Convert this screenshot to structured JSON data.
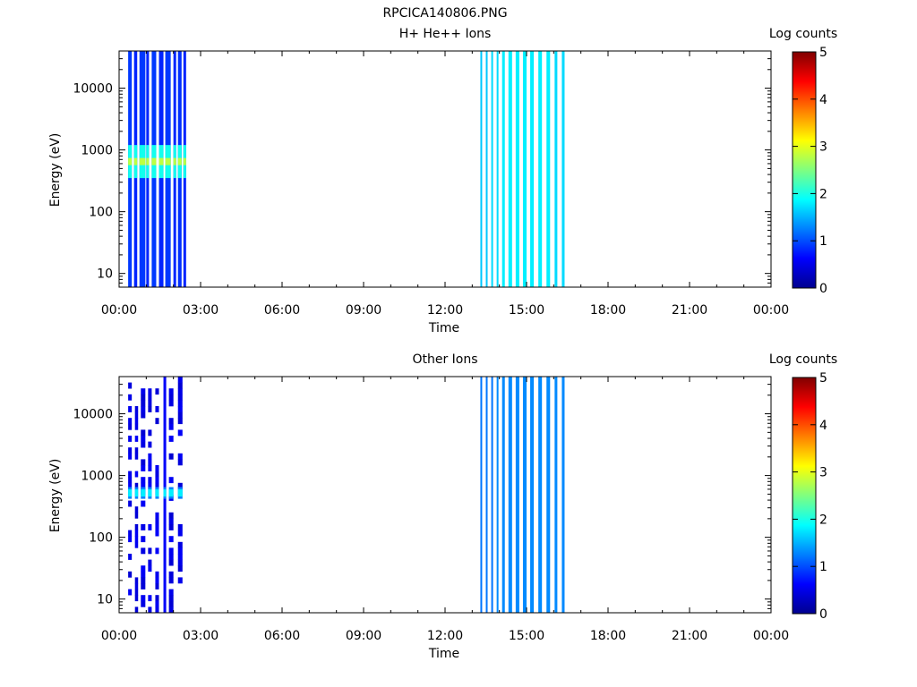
{
  "figure": {
    "title": "RPCICA140806.PNG"
  },
  "chart_data": [
    {
      "type": "heatmap",
      "title": "H+ He++ Ions",
      "xlabel": "Time",
      "ylabel": "Energy (eV)",
      "xlim": [
        "00:00",
        "24:00"
      ],
      "ylim": [
        6,
        40000
      ],
      "yscale": "log",
      "x_ticks": [
        "00:00",
        "03:00",
        "06:00",
        "09:00",
        "12:00",
        "15:00",
        "18:00",
        "21:00",
        "00:00"
      ],
      "y_ticks": [
        "10",
        "100",
        "1000",
        "10000"
      ],
      "colorbar": {
        "label": "Log counts",
        "ticks": [
          "0",
          "1",
          "2",
          "3",
          "4",
          "5"
        ],
        "range": [
          0,
          5
        ],
        "colormap": "jet"
      },
      "strips": [
        {
          "start": "00:20",
          "end": "00:28",
          "level": 0.9
        },
        {
          "start": "00:33",
          "end": "00:40",
          "level": 0.8
        },
        {
          "start": "00:45",
          "end": "00:58",
          "level": 0.9
        },
        {
          "start": "01:00",
          "end": "01:06",
          "level": 0.8
        },
        {
          "start": "01:12",
          "end": "01:22",
          "level": 0.9
        },
        {
          "start": "01:28",
          "end": "01:38",
          "level": 0.8
        },
        {
          "start": "01:42",
          "end": "01:54",
          "level": 0.9
        },
        {
          "start": "02:00",
          "end": "02:06",
          "level": 0.8
        },
        {
          "start": "02:10",
          "end": "02:18",
          "level": 0.85
        },
        {
          "start": "02:22",
          "end": "02:28",
          "level": 0.8
        },
        {
          "start": "13:18",
          "end": "13:21",
          "level": 1.6
        },
        {
          "start": "13:30",
          "end": "13:33",
          "level": 1.6
        },
        {
          "start": "13:42",
          "end": "13:46",
          "level": 1.7
        },
        {
          "start": "13:54",
          "end": "13:58",
          "level": 1.7
        },
        {
          "start": "14:06",
          "end": "14:12",
          "level": 1.8
        },
        {
          "start": "14:20",
          "end": "14:28",
          "level": 1.8
        },
        {
          "start": "14:36",
          "end": "14:44",
          "level": 1.8
        },
        {
          "start": "14:52",
          "end": "15:00",
          "level": 1.8
        },
        {
          "start": "15:08",
          "end": "15:16",
          "level": 1.8
        },
        {
          "start": "15:26",
          "end": "15:34",
          "level": 1.8
        },
        {
          "start": "15:44",
          "end": "15:52",
          "level": 1.8
        },
        {
          "start": "16:02",
          "end": "16:08",
          "level": 1.7
        },
        {
          "start": "16:18",
          "end": "16:24",
          "level": 1.7
        }
      ],
      "band": {
        "energy_low": 350,
        "energy_high": 1200,
        "start": "00:20",
        "end": "02:28",
        "level": 2.8
      }
    },
    {
      "type": "heatmap",
      "title": "Other Ions",
      "xlabel": "Time",
      "ylabel": "Energy (eV)",
      "xlim": [
        "00:00",
        "24:00"
      ],
      "ylim": [
        6,
        40000
      ],
      "yscale": "log",
      "x_ticks": [
        "00:00",
        "03:00",
        "06:00",
        "09:00",
        "12:00",
        "15:00",
        "18:00",
        "21:00",
        "00:00"
      ],
      "y_ticks": [
        "10",
        "100",
        "1000",
        "10000"
      ],
      "colorbar": {
        "label": "Log counts",
        "ticks": [
          "0",
          "1",
          "2",
          "3",
          "4",
          "5"
        ],
        "range": [
          0,
          5
        ],
        "colormap": "jet"
      },
      "strips": [
        {
          "start": "00:20",
          "end": "00:28",
          "level": 0.4,
          "sparse": true
        },
        {
          "start": "00:35",
          "end": "00:42",
          "level": 0.4,
          "sparse": true
        },
        {
          "start": "00:48",
          "end": "00:58",
          "level": 0.4,
          "sparse": true
        },
        {
          "start": "01:04",
          "end": "01:12",
          "level": 0.4,
          "sparse": true
        },
        {
          "start": "01:20",
          "end": "01:28",
          "level": 0.4,
          "sparse": true
        },
        {
          "start": "01:38",
          "end": "01:44",
          "level": 0.6
        },
        {
          "start": "01:50",
          "end": "02:00",
          "level": 0.4,
          "sparse": true
        },
        {
          "start": "02:10",
          "end": "02:20",
          "level": 0.4,
          "sparse": true
        },
        {
          "start": "13:18",
          "end": "13:21",
          "level": 1.2
        },
        {
          "start": "13:30",
          "end": "13:33",
          "level": 1.2
        },
        {
          "start": "13:42",
          "end": "13:46",
          "level": 1.2
        },
        {
          "start": "13:54",
          "end": "13:58",
          "level": 1.3
        },
        {
          "start": "14:06",
          "end": "14:12",
          "level": 1.3
        },
        {
          "start": "14:20",
          "end": "14:28",
          "level": 1.3
        },
        {
          "start": "14:36",
          "end": "14:44",
          "level": 1.3
        },
        {
          "start": "14:52",
          "end": "15:00",
          "level": 1.3
        },
        {
          "start": "15:08",
          "end": "15:16",
          "level": 1.3
        },
        {
          "start": "15:26",
          "end": "15:34",
          "level": 1.3
        },
        {
          "start": "15:44",
          "end": "15:52",
          "level": 1.3
        },
        {
          "start": "16:02",
          "end": "16:08",
          "level": 1.3
        },
        {
          "start": "16:18",
          "end": "16:24",
          "level": 1.3
        }
      ],
      "band": {
        "energy_low": 420,
        "energy_high": 650,
        "start": "00:20",
        "end": "02:20",
        "level": 1.8
      }
    }
  ]
}
